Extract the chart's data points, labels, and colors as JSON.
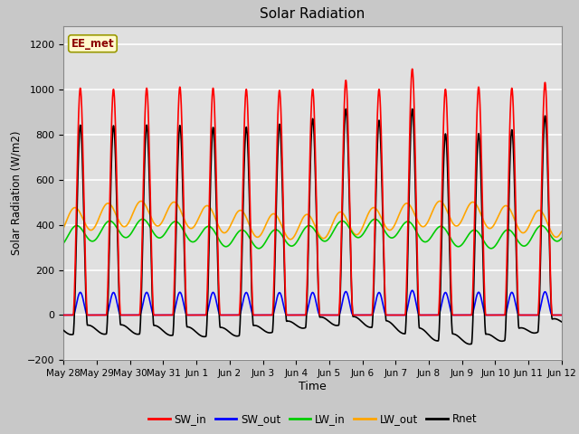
{
  "title": "Solar Radiation",
  "xlabel": "Time",
  "ylabel": "Solar Radiation (W/m2)",
  "ylim": [
    -200,
    1280
  ],
  "yticks": [
    -200,
    0,
    200,
    400,
    600,
    800,
    1000,
    1200
  ],
  "annotation": "EE_met",
  "annotation_color": "#8B0000",
  "annotation_bg": "#FFFACD",
  "annotation_border": "#999900",
  "fig_bg": "#C8C8C8",
  "plot_bg": "#E0E0E0",
  "n_days": 15,
  "xtick_labels": [
    "May 28",
    "May 29",
    "May 30",
    "May 31",
    "Jun 1",
    "Jun 2",
    "Jun 3",
    "Jun 4",
    "Jun 5",
    "Jun 6",
    "Jun 7",
    "Jun 8",
    "Jun 9",
    "Jun 10",
    "Jun 11",
    "Jun 12"
  ],
  "colors": {
    "SW_in": "#FF0000",
    "SW_out": "#0000FF",
    "LW_in": "#00CC00",
    "LW_out": "#FFA500",
    "Rnet": "#000000"
  },
  "lw": 1.2
}
